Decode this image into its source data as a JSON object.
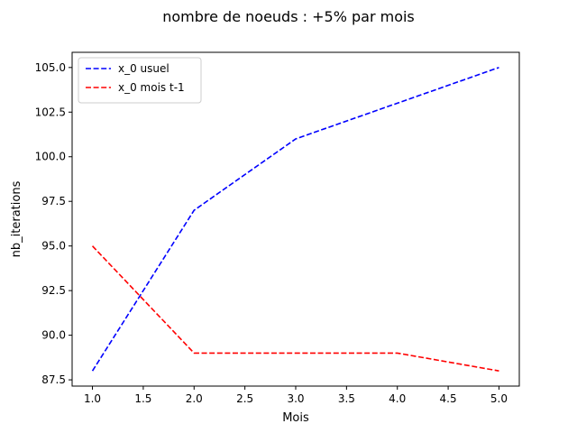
{
  "chart_data": {
    "type": "line",
    "title": "nombre de noeuds : +5% par mois",
    "xlabel": "Mois",
    "ylabel": "nb_iterations",
    "x": [
      1,
      2,
      3,
      4,
      5
    ],
    "xlim": [
      0.8,
      5.2
    ],
    "ylim": [
      87.15,
      105.85
    ],
    "xticks": [
      1.0,
      1.5,
      2.0,
      2.5,
      3.0,
      3.5,
      4.0,
      4.5,
      5.0
    ],
    "xtick_labels": [
      "1.0",
      "1.5",
      "2.0",
      "2.5",
      "3.0",
      "3.5",
      "4.0",
      "4.5",
      "5.0"
    ],
    "yticks": [
      87.5,
      90.0,
      92.5,
      95.0,
      97.5,
      100.0,
      102.5,
      105.0
    ],
    "ytick_labels": [
      "87.5",
      "90.0",
      "92.5",
      "95.0",
      "97.5",
      "100.0",
      "102.5",
      "105.0"
    ],
    "grid": false,
    "legend_position": "upper-left",
    "series": [
      {
        "name": "x_0 usuel",
        "values": [
          88,
          97,
          101,
          103,
          105
        ],
        "color": "#0000ff",
        "style": "dashed"
      },
      {
        "name": "x_0 mois t-1",
        "values": [
          95,
          89,
          89,
          89,
          88
        ],
        "color": "#ff0000",
        "style": "dashed"
      }
    ]
  }
}
